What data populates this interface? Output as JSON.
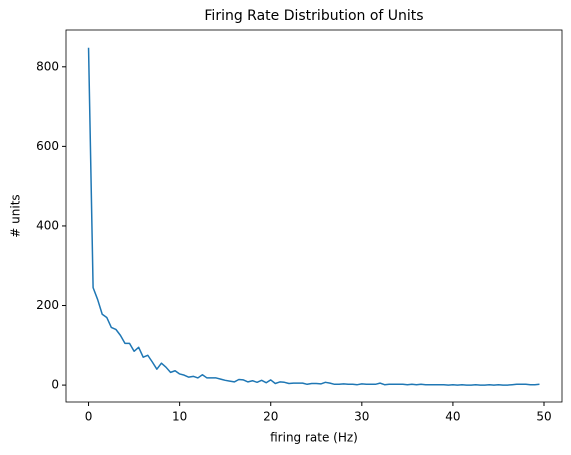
{
  "chart_data": {
    "type": "line",
    "title": "Firing Rate Distribution of Units",
    "x_label": "firing rate (Hz)",
    "y_label": "# units",
    "color": "#1f77b4",
    "x": [
      0,
      0.5,
      1,
      1.5,
      2,
      2.5,
      3,
      3.5,
      4,
      4.5,
      5,
      5.5,
      6,
      6.5,
      7,
      7.5,
      8,
      8.5,
      9,
      9.5,
      10,
      10.5,
      11,
      11.5,
      12,
      12.5,
      13,
      13.5,
      14,
      14.5,
      15,
      15.5,
      16,
      16.5,
      17,
      17.5,
      18,
      18.5,
      19,
      19.5,
      20,
      20.5,
      21,
      21.5,
      22,
      22.5,
      23,
      23.5,
      24,
      24.5,
      25,
      25.5,
      26,
      26.5,
      27,
      27.5,
      28,
      28.5,
      29,
      29.5,
      30,
      30.5,
      31,
      31.5,
      32,
      32.5,
      33,
      33.5,
      34,
      34.5,
      35,
      35.5,
      36,
      36.5,
      37,
      37.5,
      38,
      38.5,
      39,
      39.5,
      40,
      40.5,
      41,
      41.5,
      42,
      42.5,
      43,
      43.5,
      44,
      44.5,
      45,
      45.5,
      46,
      46.5,
      47,
      47.5,
      48,
      48.5,
      49,
      49.5
    ],
    "values": [
      848,
      245,
      215,
      178,
      170,
      145,
      140,
      125,
      105,
      105,
      85,
      95,
      70,
      75,
      58,
      40,
      55,
      45,
      32,
      36,
      28,
      25,
      20,
      22,
      18,
      26,
      18,
      18,
      18,
      15,
      12,
      10,
      8,
      14,
      13,
      8,
      11,
      7,
      12,
      6,
      13,
      4,
      8,
      7,
      4,
      5,
      5,
      5,
      2,
      4,
      4,
      3,
      7,
      5,
      2,
      2,
      3,
      2,
      2,
      1,
      3,
      2,
      2,
      2,
      5,
      1,
      2,
      2,
      2,
      2,
      1,
      2,
      1,
      2,
      1,
      1,
      1,
      1,
      1,
      0,
      1,
      0,
      1,
      0,
      0,
      1,
      0,
      0,
      1,
      0,
      1,
      0,
      0,
      1,
      2,
      2,
      2,
      1,
      1,
      2
    ],
    "xlim": [
      -2.475,
      51.975
    ],
    "ylim": [
      -42.5,
      892.5
    ],
    "xticks": [
      0,
      10,
      20,
      30,
      40,
      50
    ],
    "yticks": [
      0,
      200,
      400,
      600,
      800
    ]
  }
}
